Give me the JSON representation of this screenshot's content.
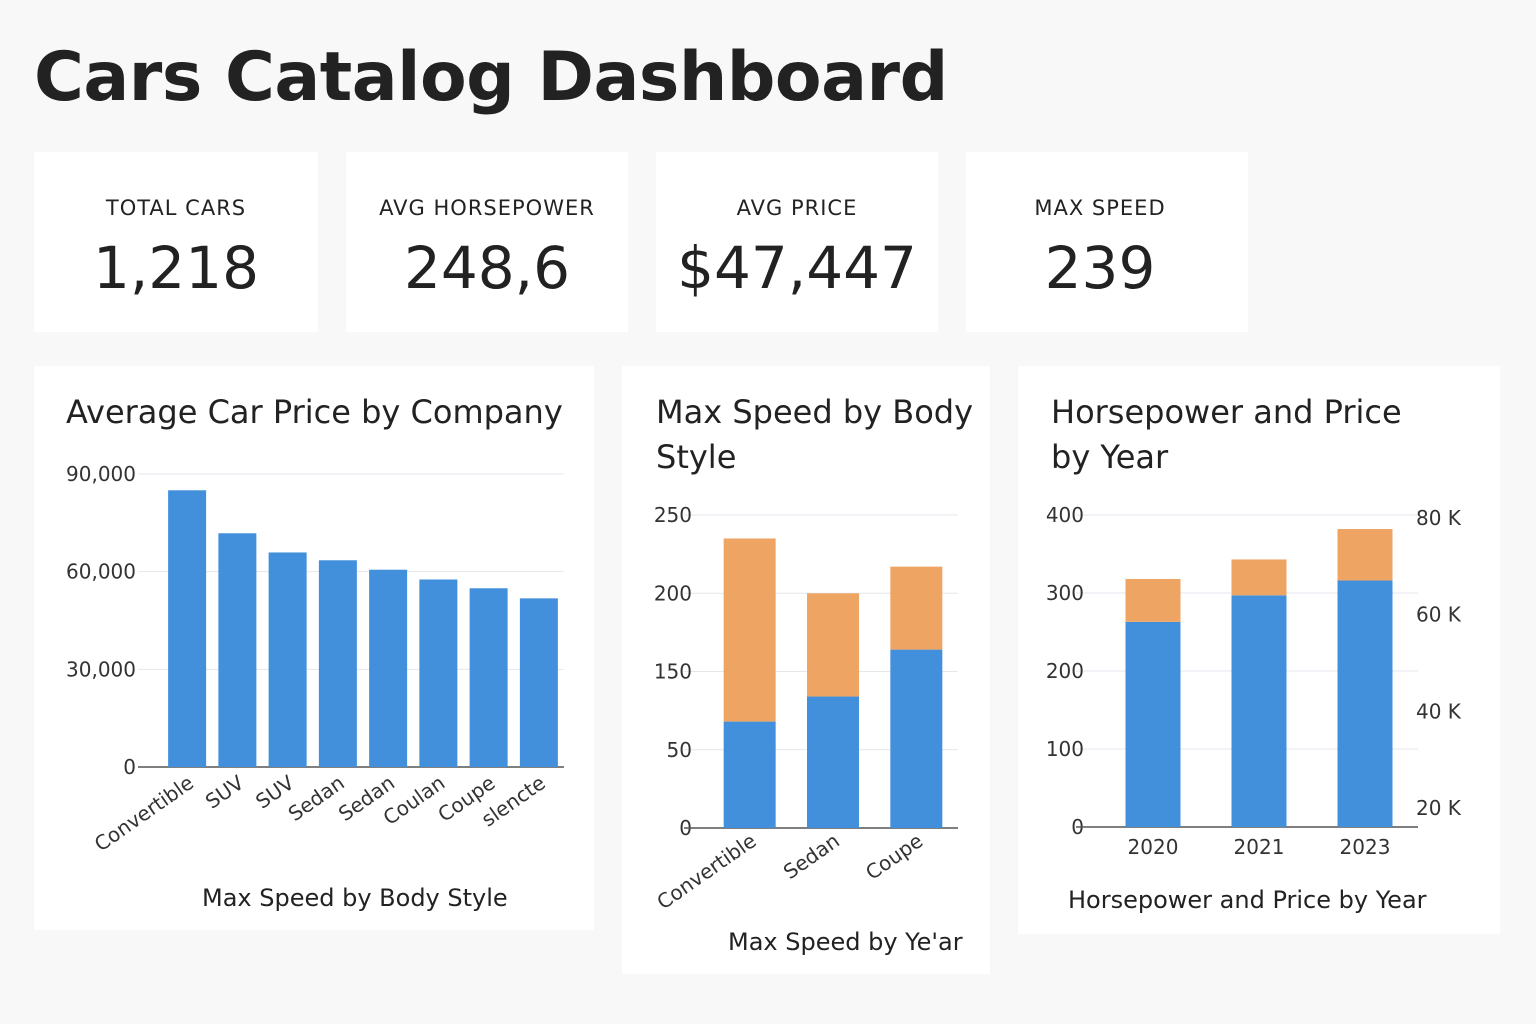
{
  "dashboard": {
    "title": "Cars Catalog Dashboard"
  },
  "kpis": [
    {
      "label": "TOTAL CARS",
      "value": "1,218"
    },
    {
      "label": "AVG HORSEPOWER",
      "value": "248,6"
    },
    {
      "label": "AVG PRICE",
      "value": "$47,447"
    },
    {
      "label": "MAX SPEED",
      "value": "239"
    }
  ],
  "colors": {
    "blue": "#4290db",
    "orange": "#eea564",
    "grid": "#e4e7ec",
    "axis": "#555555"
  },
  "chart_data": [
    {
      "type": "bar",
      "title": "Average Car Price by Company",
      "caption": "Max Speed by Body Style",
      "categories": [
        "Convertible",
        "SUV",
        "SUV",
        "Sedan",
        "Sedan",
        "Coulan",
        "Coupe",
        "slencte"
      ],
      "values": [
        85000,
        71800,
        65900,
        63500,
        60600,
        57600,
        54900,
        51800
      ],
      "y_ticks": [
        "0",
        "30,000",
        "60,000",
        "90,000"
      ],
      "ylim": [
        0,
        90000
      ],
      "grid": true
    },
    {
      "type": "bar",
      "stacked": true,
      "title": "Max Speed by Body Style",
      "caption": "Max Speed by Ye'ar",
      "categories": [
        "Convertible",
        "Sedan",
        "Coupe"
      ],
      "series": [
        {
          "values": [
            68,
            84,
            114
          ]
        },
        {
          "values": [
            117,
            66,
            53
          ]
        }
      ],
      "y_ticks": [
        "0",
        "50",
        "150",
        "200",
        "250"
      ],
      "ylim": [
        0,
        200
      ],
      "grid": true
    },
    {
      "type": "bar",
      "stacked": true,
      "title": "Horsepower and Price by Year",
      "caption": "Horsepower and Price by Year",
      "categories": [
        "2020",
        "2021",
        "2023"
      ],
      "series": [
        {
          "values": [
            263,
            297,
            316
          ]
        },
        {
          "values": [
            55,
            46,
            66
          ]
        }
      ],
      "y_ticks": [
        "0",
        "100",
        "200",
        "300",
        "400"
      ],
      "ylim": [
        0,
        400
      ],
      "y2_ticks": [
        "20 K",
        "40 K",
        "60 K",
        "80 K"
      ],
      "grid": true
    }
  ]
}
